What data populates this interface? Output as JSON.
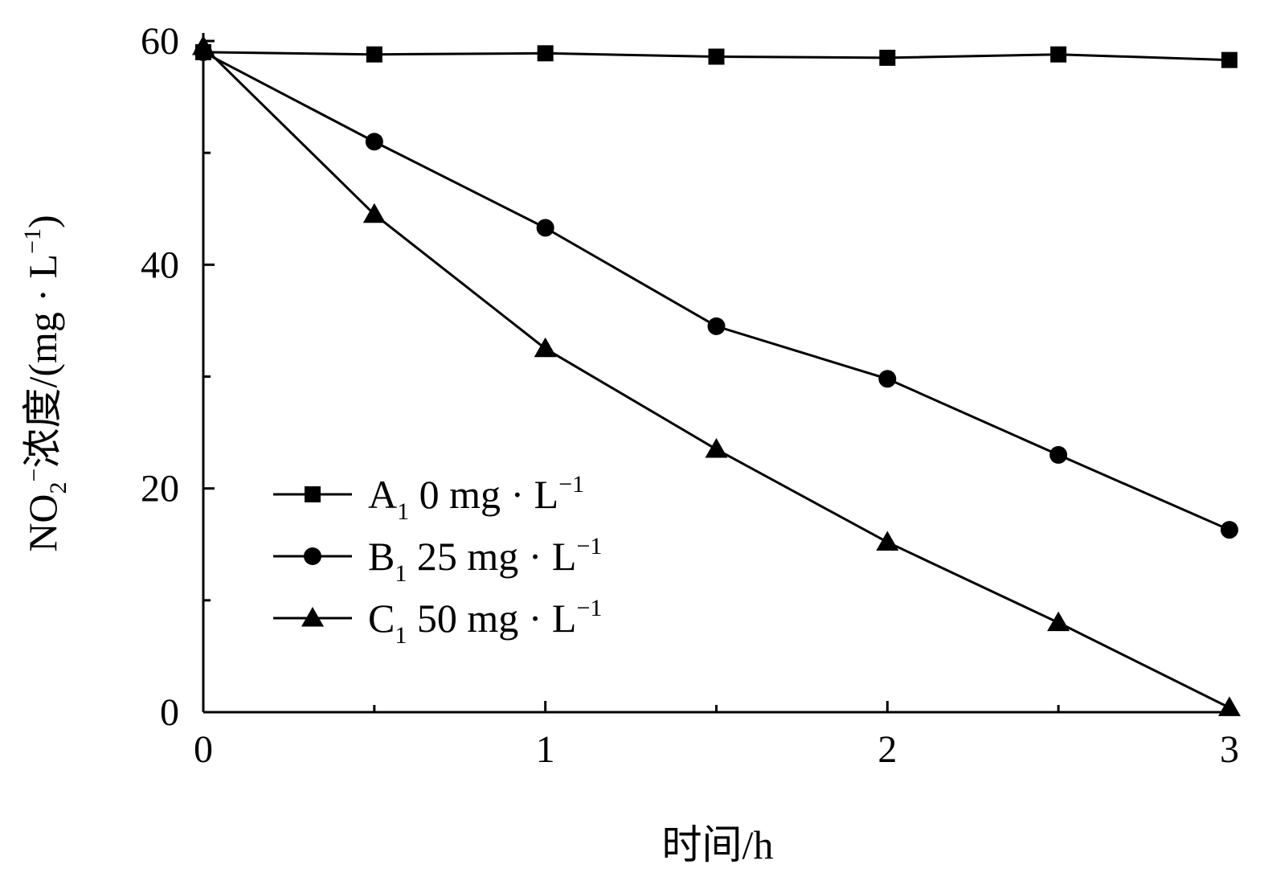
{
  "chart_data": {
    "type": "line",
    "xlabel": "时间/h",
    "ylabel": {
      "prefix": "NO",
      "sub": "2",
      "sup": "−",
      "text": "浓度/(mg · L",
      "unit_sup": "−1",
      "suffix": ")"
    },
    "xlim": [
      0,
      3
    ],
    "ylim": [
      0,
      60
    ],
    "x_ticks": [
      0,
      1,
      2,
      3
    ],
    "x_minor_ticks": [
      0.5,
      1.5,
      2.5
    ],
    "y_ticks": [
      0,
      20,
      40,
      60
    ],
    "y_minor_ticks": [
      10,
      30,
      50
    ],
    "x": [
      0,
      0.5,
      1,
      1.5,
      2,
      2.5,
      3
    ],
    "series": [
      {
        "name": "A1 0 mg · L−1",
        "label_main": "A",
        "label_sub": "1",
        "label_rest": " 0 mg · L",
        "label_sup": "−1",
        "marker": "square",
        "values": [
          59.0,
          58.8,
          58.9,
          58.6,
          58.5,
          58.8,
          58.3
        ]
      },
      {
        "name": "B1 25 mg · L−1",
        "label_main": "B",
        "label_sub": "1",
        "label_rest": " 25 mg · L",
        "label_sup": "−1",
        "marker": "circle",
        "values": [
          59.0,
          51.0,
          43.3,
          34.5,
          29.8,
          23.0,
          16.3
        ]
      },
      {
        "name": "C1 50 mg · L−1",
        "label_main": "C",
        "label_sub": "1",
        "label_rest": " 50 mg · L",
        "label_sup": "−1",
        "marker": "triangle",
        "values": [
          59.5,
          44.5,
          32.5,
          23.5,
          15.2,
          8.0,
          0.4
        ]
      }
    ],
    "grid": false,
    "legend_position": "lower-left"
  }
}
